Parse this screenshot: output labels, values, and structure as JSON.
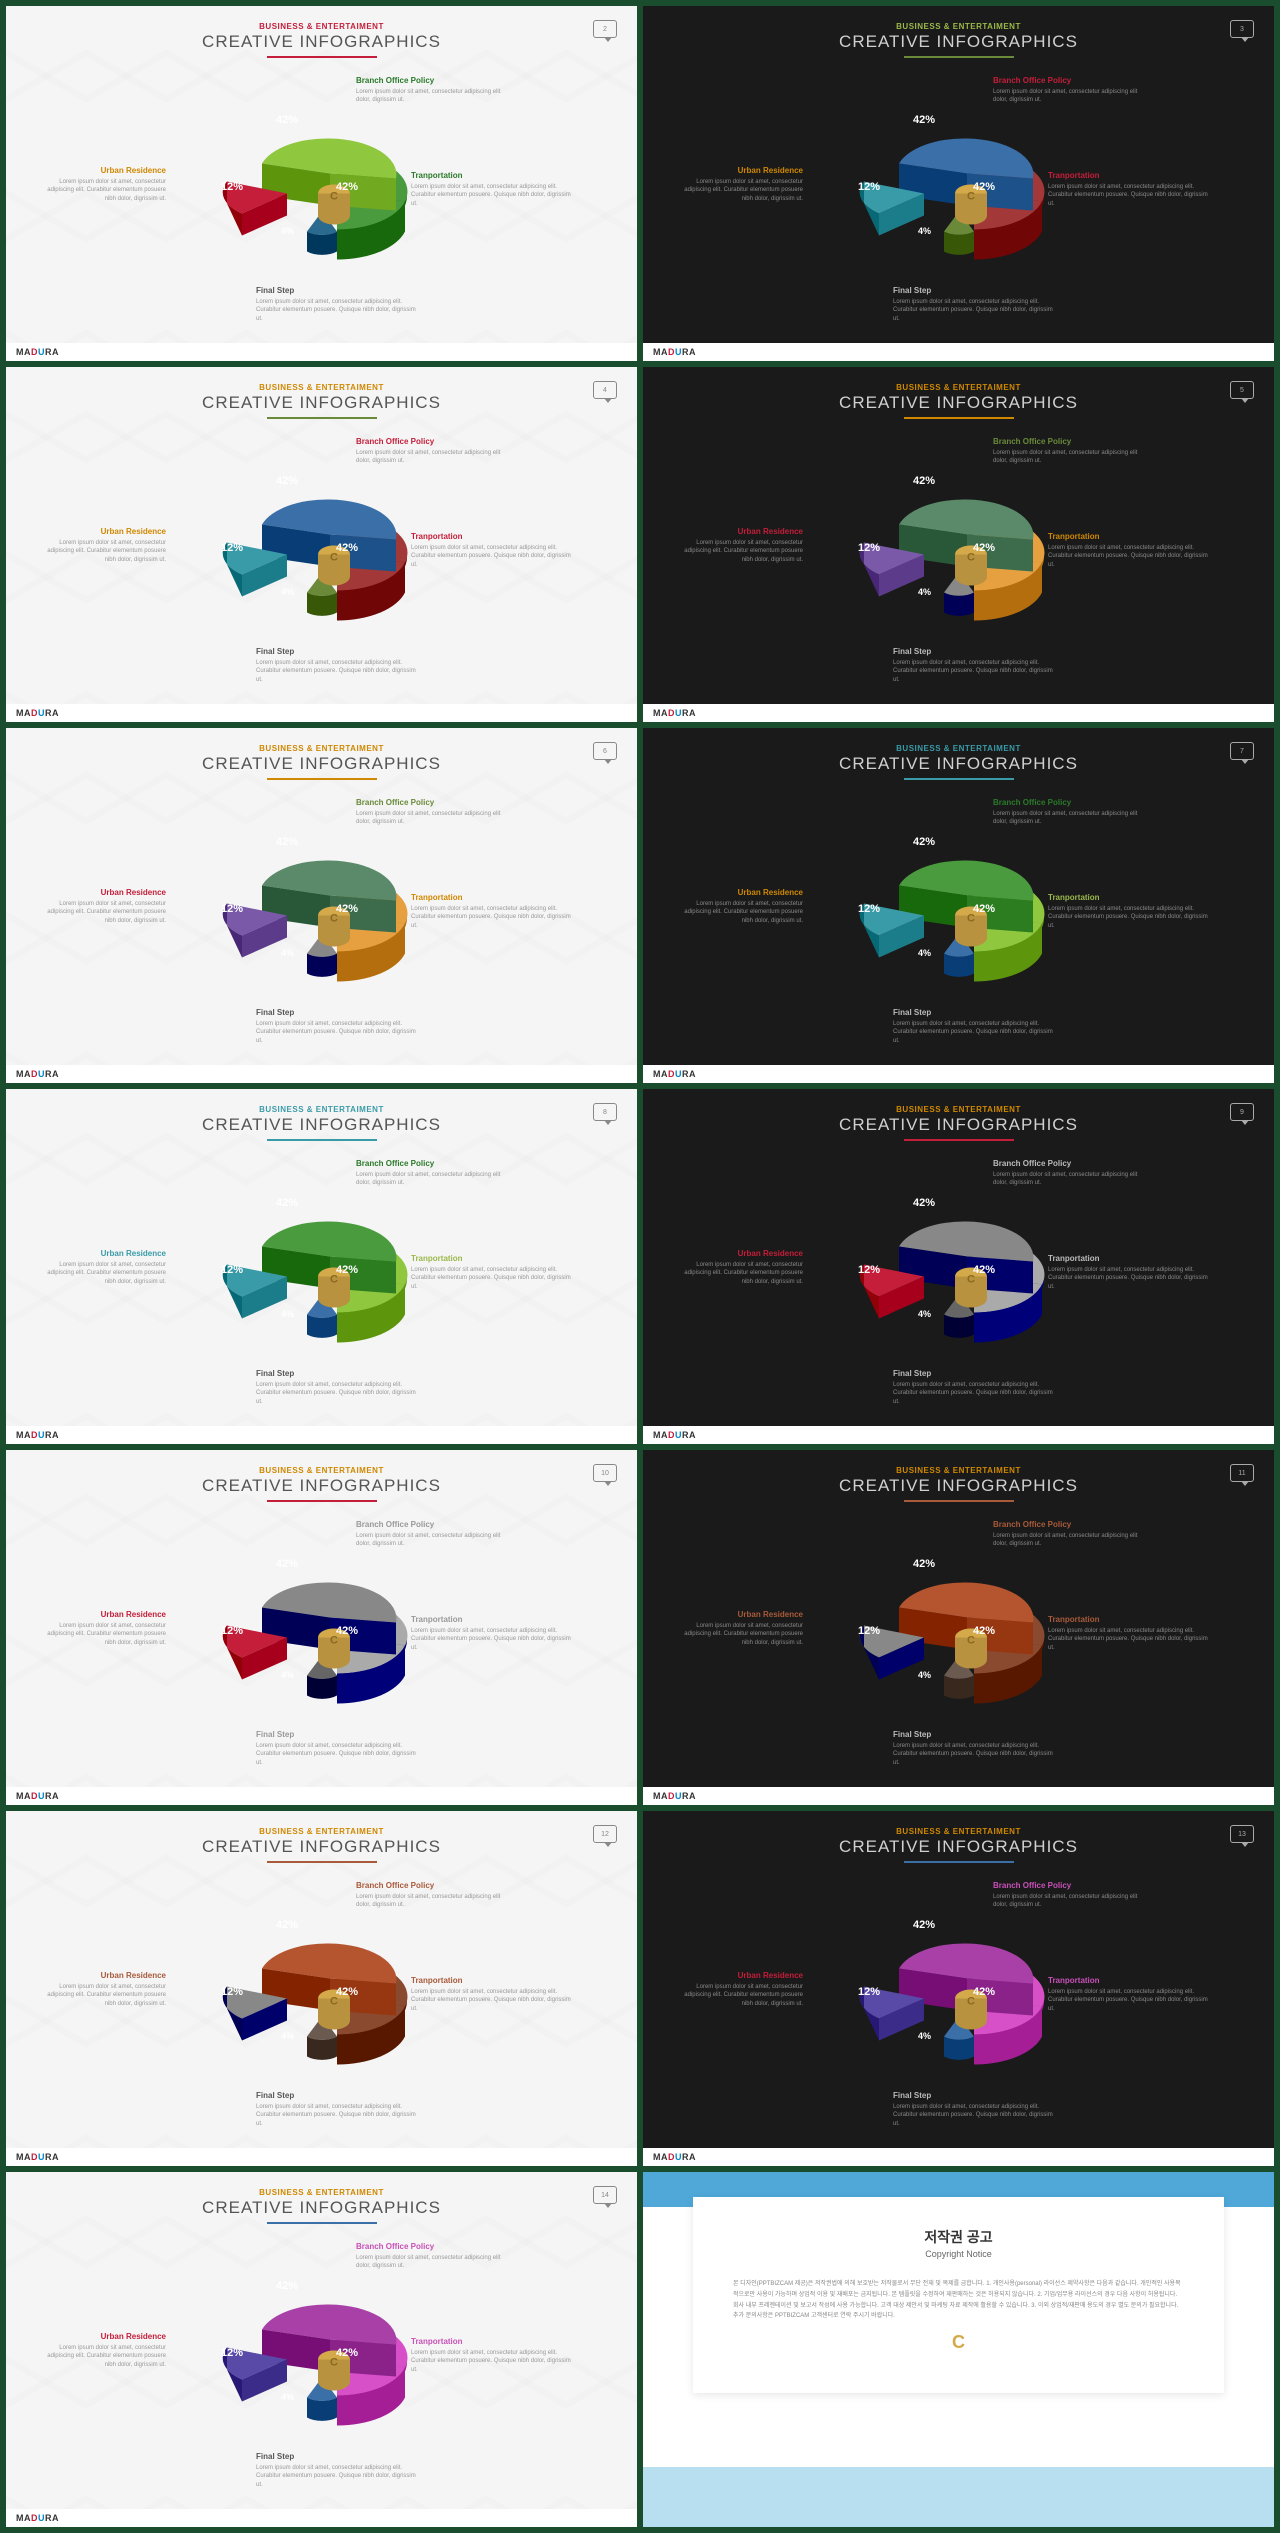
{
  "common": {
    "subtitle": "BUSINESS & ENTERTAIMENT",
    "title": "CREATIVE INFOGRAPHICS",
    "brand_parts": [
      "MA",
      "D",
      "U",
      "RA"
    ],
    "labels": {
      "top": {
        "title": "Branch Office Policy",
        "text": "Lorem ipsum dolor sit amet, consectetur adipiscing elit dolor, digrissim ut."
      },
      "right": {
        "title": "Tranportation",
        "text": "Lorem ipsum dolor sit amet, consectetur adipiscing elit. Curabitur elementum posuere. Quisque nibh dolor, digrissim ut."
      },
      "bottom": {
        "title": "Final Step",
        "text": "Lorem ipsum dolor sit amet, consectetur adipiscing elit. Curabitur elementum posuere. Quisque nibh dolor, digrissim ut."
      },
      "left": {
        "title": "Urban Residence",
        "text": "Lorem ipsum dolor sit amet, consectetur adipiscing elit. Curabitur elementum posuere nibh dolor, digrissim ut."
      }
    },
    "slices": [
      {
        "name": "top",
        "value": 42,
        "label": "42%"
      },
      {
        "name": "right",
        "value": 42,
        "label": "42%"
      },
      {
        "name": "bottom",
        "value": 4,
        "label": "4%"
      },
      {
        "name": "left",
        "value": 12,
        "label": "12%"
      }
    ]
  },
  "slides": [
    {
      "n": 2,
      "bg": "light",
      "sub_color": "#c41e3a",
      "line": "#c41e3a",
      "top_title": "#2a7a2a",
      "right_title": "#2a7a2a",
      "left_title": "#d08800",
      "bottom_title": "#555",
      "colors": {
        "top": "#8fc73e",
        "right": "#4a9b3e",
        "bottom": "#2b6a8f",
        "left": "#c41e3a"
      }
    },
    {
      "n": 3,
      "bg": "dark",
      "sub_color": "#9bb84a",
      "line": "#6a8a3a",
      "top_title": "#c41e3a",
      "right_title": "#c41e3a",
      "left_title": "#d08800",
      "bottom_title": "#bbb",
      "colors": {
        "top": "#3a6fa8",
        "right": "#a23838",
        "bottom": "#6a8a3a",
        "left": "#3a9ba8"
      }
    },
    {
      "n": 4,
      "bg": "light",
      "sub_color": "#d08800",
      "line": "#6a8a3a",
      "top_title": "#c41e3a",
      "right_title": "#c41e3a",
      "left_title": "#d08800",
      "bottom_title": "#555",
      "colors": {
        "top": "#3a6fa8",
        "right": "#a23838",
        "bottom": "#6a8a3a",
        "left": "#3a9ba8"
      }
    },
    {
      "n": 5,
      "bg": "dark",
      "sub_color": "#d08800",
      "line": "#d08800",
      "top_title": "#6a8a3a",
      "right_title": "#d08800",
      "left_title": "#c41e3a",
      "bottom_title": "#bbb",
      "colors": {
        "top": "#5a8a6a",
        "right": "#e6a040",
        "bottom": "#888",
        "left": "#7a5aa8"
      }
    },
    {
      "n": 6,
      "bg": "light",
      "sub_color": "#d08800",
      "line": "#d08800",
      "top_title": "#6a8a3a",
      "right_title": "#d08800",
      "left_title": "#c41e3a",
      "bottom_title": "#555",
      "colors": {
        "top": "#5a8a6a",
        "right": "#e6a040",
        "bottom": "#888",
        "left": "#7a5aa8"
      }
    },
    {
      "n": 7,
      "bg": "dark",
      "sub_color": "#3a9ba8",
      "line": "#3a9ba8",
      "top_title": "#2a7a2a",
      "right_title": "#9bb84a",
      "left_title": "#d08800",
      "bottom_title": "#bbb",
      "colors": {
        "top": "#4a9b3e",
        "right": "#8fc73e",
        "bottom": "#3a6fa8",
        "left": "#3a9ba8"
      }
    },
    {
      "n": 8,
      "bg": "light",
      "sub_color": "#3a9ba8",
      "line": "#3a9ba8",
      "top_title": "#2a7a2a",
      "right_title": "#9bb84a",
      "left_title": "#3a9ba8",
      "bottom_title": "#555",
      "colors": {
        "top": "#4a9b3e",
        "right": "#8fc73e",
        "bottom": "#3a6fa8",
        "left": "#3a9ba8"
      }
    },
    {
      "n": 9,
      "bg": "dark",
      "sub_color": "#d08800",
      "line": "#c41e3a",
      "top_title": "#bbb",
      "right_title": "#bbb",
      "left_title": "#c41e3a",
      "bottom_title": "#bbb",
      "colors": {
        "top": "#888",
        "right": "#aaa",
        "bottom": "#666",
        "left": "#c41e3a"
      }
    },
    {
      "n": 10,
      "bg": "light",
      "sub_color": "#d08800",
      "line": "#c41e3a",
      "top_title": "#999",
      "right_title": "#999",
      "left_title": "#c41e3a",
      "bottom_title": "#999",
      "colors": {
        "top": "#888",
        "right": "#aaa",
        "bottom": "#666",
        "left": "#c41e3a"
      }
    },
    {
      "n": 11,
      "bg": "dark",
      "sub_color": "#d08800",
      "line": "#a85a3a",
      "top_title": "#a85a3a",
      "right_title": "#a85a3a",
      "left_title": "#a85a3a",
      "bottom_title": "#bbb",
      "colors": {
        "top": "#b55530",
        "right": "#8a4a30",
        "bottom": "#6a5a50",
        "left": "#888"
      }
    },
    {
      "n": 12,
      "bg": "light",
      "sub_color": "#d08800",
      "line": "#a85a3a",
      "top_title": "#a85a3a",
      "right_title": "#a85a3a",
      "left_title": "#a85a3a",
      "bottom_title": "#555",
      "colors": {
        "top": "#b55530",
        "right": "#8a4a30",
        "bottom": "#6a5a50",
        "left": "#888"
      }
    },
    {
      "n": 13,
      "bg": "dark",
      "sub_color": "#d08800",
      "line": "#3a6fa8",
      "top_title": "#c850b8",
      "right_title": "#c850b8",
      "left_title": "#c41e3a",
      "bottom_title": "#bbb",
      "colors": {
        "top": "#a840a8",
        "right": "#d850c8",
        "bottom": "#3a6fa8",
        "left": "#5a4aa8"
      }
    },
    {
      "n": 14,
      "bg": "light",
      "sub_color": "#d08800",
      "line": "#3a6fa8",
      "top_title": "#c850b8",
      "right_title": "#c850b8",
      "left_title": "#c41e3a",
      "bottom_title": "#555",
      "colors": {
        "top": "#a840a8",
        "right": "#d850c8",
        "bottom": "#3a6fa8",
        "left": "#5a4aa8"
      }
    }
  ],
  "copyright": {
    "title": "저작권 공고",
    "subtitle": "Copyright Notice",
    "body": "본 디자인(PPTBIZCAM 제공)은 저작권법에 의해 보호받는 저작물로서 무단 전재 및 복제를 금합니다.\n\n1. 개인사용(personal) 라이선스 제약사항은 다음과 같습니다. 개인적인 사용목적으로만 사용이 가능하며 상업적 이용 및 재배포는 금지됩니다. 본 템플릿을 수정하여 재판매하는 것은 허용되지 않습니다.\n\n2. 기업/업무용 라이선스의 경우 다음 사항이 허용됩니다. 회사 내부 프레젠테이션 및 보고서 작성에 사용 가능합니다. 고객 대상 제안서 및 마케팅 자료 제작에 활용할 수 있습니다.\n\n3. 이외 상업적/재판매 용도의 경우 별도 문의가 필요합니다.\n\n추가 문의사항은 PPTBIZCAM 고객센터로 연락 주시기 바랍니다."
  }
}
